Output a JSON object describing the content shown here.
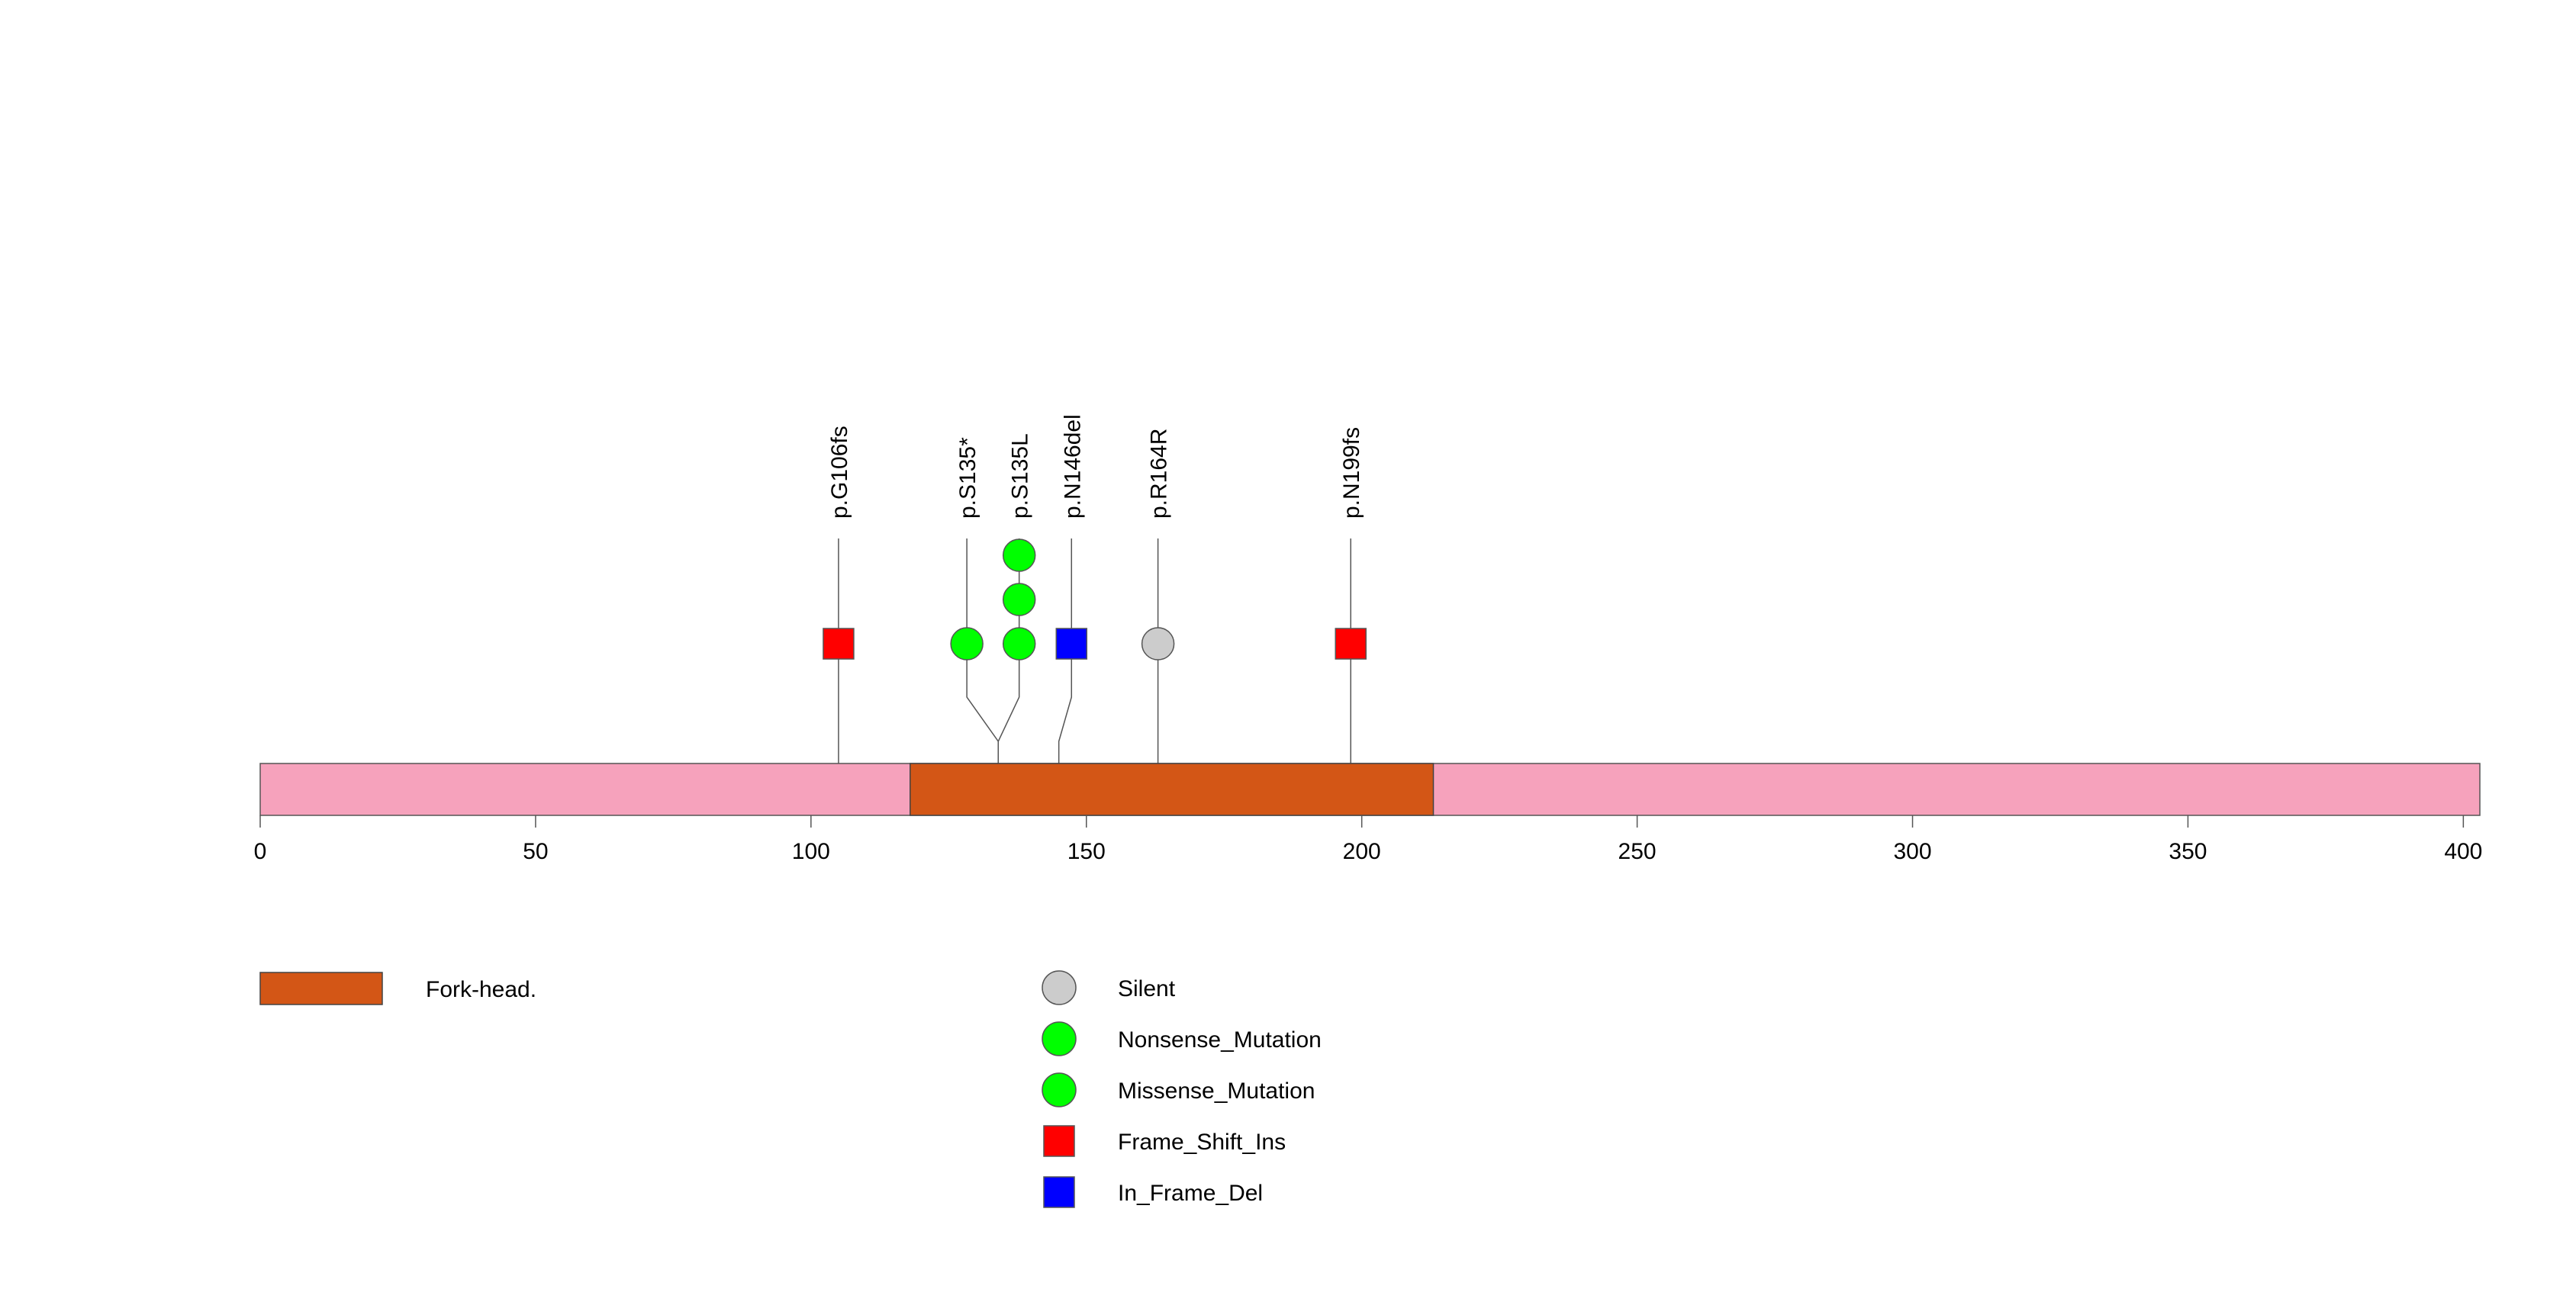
{
  "chart_data": {
    "type": "lollipop",
    "protein_length": 403,
    "xlim": [
      0,
      403
    ],
    "x_ticks": [
      0,
      50,
      100,
      150,
      200,
      250,
      300,
      350,
      400
    ],
    "x_tick_labels": [
      "0",
      "50",
      "100",
      "150",
      "200",
      "250",
      "300",
      "350",
      "400"
    ],
    "backbone_color": "#f6a2bc",
    "domains": [
      {
        "name": "Fork-head.",
        "start": 118,
        "end": 213,
        "color": "#d35616"
      }
    ],
    "mutations": [
      {
        "label": "p.G106fs",
        "position": 105,
        "display_x": 105,
        "type": "Frame_Shift_Ins",
        "count": 1
      },
      {
        "label": "p.S135*",
        "position": 134,
        "display_x": 128.3,
        "type": "Nonsense_Mutation",
        "count": 1
      },
      {
        "label": "p.S135L",
        "position": 134,
        "display_x": 137.8,
        "type": "Missense_Mutation",
        "count": 3
      },
      {
        "label": "p.N146del",
        "position": 145,
        "display_x": 147.3,
        "type": "In_Frame_Del",
        "count": 1
      },
      {
        "label": "p.R164R",
        "position": 163,
        "display_x": 163,
        "type": "Silent",
        "count": 1
      },
      {
        "label": "p.N199fs",
        "position": 198,
        "display_x": 198,
        "type": "Frame_Shift_Ins",
        "count": 1
      }
    ],
    "mutation_types": [
      {
        "name": "Silent",
        "shape": "circle",
        "color": "#cccccc"
      },
      {
        "name": "Nonsense_Mutation",
        "shape": "circle",
        "color": "#00ff00"
      },
      {
        "name": "Missense_Mutation",
        "shape": "circle",
        "color": "#00ff00"
      },
      {
        "name": "Frame_Shift_Ins",
        "shape": "square",
        "color": "#ff0000"
      },
      {
        "name": "In_Frame_Del",
        "shape": "square",
        "color": "#0000ff"
      }
    ],
    "legend_domain_label": "Fork-head."
  }
}
